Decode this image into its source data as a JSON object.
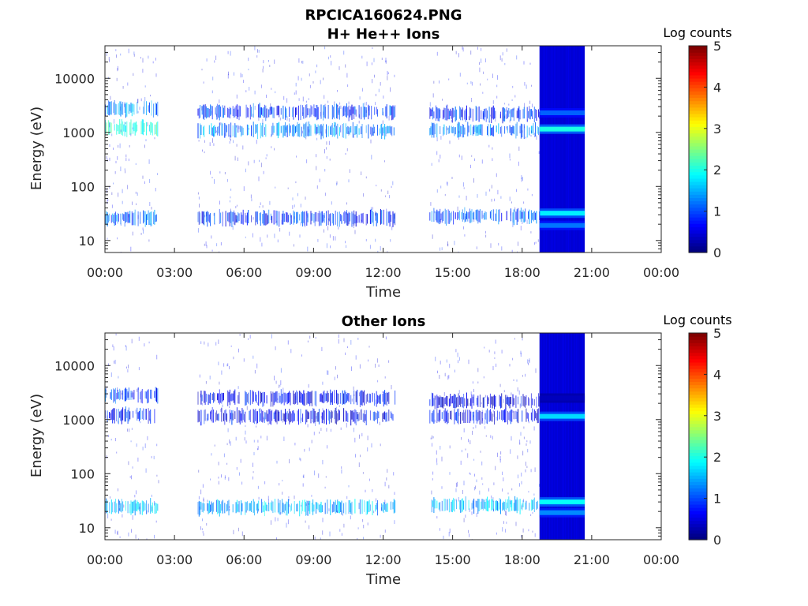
{
  "chart_data": [
    {
      "type": "heatmap",
      "title": "RPCICA160624.PNG",
      "subtitle": "H+ He++ Ions",
      "xlabel": "Time",
      "ylabel": "Energy (eV)",
      "x_ticks": [
        "00:00",
        "03:00",
        "06:00",
        "09:00",
        "12:00",
        "15:00",
        "18:00",
        "21:00",
        "00:00"
      ],
      "x_range_hours": [
        0,
        24
      ],
      "y_scale": "log",
      "y_ticks": [
        "10",
        "100",
        "1000",
        "10000"
      ],
      "y_range": [
        6,
        40000
      ],
      "colorbar": {
        "label": "Log counts",
        "range": [
          0,
          5
        ],
        "ticks": [
          "0",
          "1",
          "2",
          "3",
          "4",
          "5"
        ],
        "colormap": "jet"
      },
      "data_gaps_hours": [
        [
          2.3,
          4.0
        ],
        [
          12.5,
          14.0
        ],
        [
          20.7,
          24.0
        ]
      ],
      "bands": [
        {
          "t_start": 0.0,
          "t_end": 2.3,
          "energy_eV": 1200,
          "log_counts": 2.0
        },
        {
          "t_start": 0.0,
          "t_end": 2.3,
          "energy_eV": 2700,
          "log_counts": 1.3
        },
        {
          "t_start": 0.0,
          "t_end": 2.3,
          "energy_eV": 26,
          "log_counts": 1.1
        },
        {
          "t_start": 4.0,
          "t_end": 12.5,
          "energy_eV": 1100,
          "log_counts": 1.3
        },
        {
          "t_start": 4.0,
          "t_end": 12.5,
          "energy_eV": 2400,
          "log_counts": 0.9
        },
        {
          "t_start": 4.0,
          "t_end": 12.5,
          "energy_eV": 26,
          "log_counts": 0.8
        },
        {
          "t_start": 14.0,
          "t_end": 18.75,
          "energy_eV": 1100,
          "log_counts": 1.2
        },
        {
          "t_start": 14.0,
          "t_end": 18.75,
          "energy_eV": 2200,
          "log_counts": 0.8
        },
        {
          "t_start": 14.0,
          "t_end": 18.75,
          "energy_eV": 28,
          "log_counts": 1.0
        }
      ],
      "saturated_interval": {
        "t_start": 18.75,
        "t_end": 20.7,
        "background_log_counts": 0.4,
        "bands": [
          {
            "energy_eV": 1150,
            "log_counts": 2.0
          },
          {
            "energy_eV": 2300,
            "log_counts": 1.1
          },
          {
            "energy_eV": 32,
            "log_counts": 1.8
          },
          {
            "energy_eV": 19,
            "log_counts": 1.2
          }
        ]
      }
    },
    {
      "type": "heatmap",
      "title": "Other Ions",
      "xlabel": "Time",
      "ylabel": "Energy (eV)",
      "x_ticks": [
        "00:00",
        "03:00",
        "06:00",
        "09:00",
        "12:00",
        "15:00",
        "18:00",
        "21:00",
        "00:00"
      ],
      "x_range_hours": [
        0,
        24
      ],
      "y_scale": "log",
      "y_ticks": [
        "10",
        "100",
        "1000",
        "10000"
      ],
      "y_range": [
        6,
        40000
      ],
      "colorbar": {
        "label": "Log counts",
        "range": [
          0,
          5
        ],
        "ticks": [
          "0",
          "1",
          "2",
          "3",
          "4",
          "5"
        ],
        "colormap": "jet"
      },
      "data_gaps_hours": [
        [
          2.3,
          4.0
        ],
        [
          12.5,
          14.0
        ],
        [
          20.7,
          24.0
        ]
      ],
      "bands": [
        {
          "t_start": 0.0,
          "t_end": 2.3,
          "energy_eV": 2800,
          "log_counts": 0.9
        },
        {
          "t_start": 0.0,
          "t_end": 2.3,
          "energy_eV": 1200,
          "log_counts": 0.8
        },
        {
          "t_start": 0.0,
          "t_end": 2.3,
          "energy_eV": 24,
          "log_counts": 1.6
        },
        {
          "t_start": 4.0,
          "t_end": 12.5,
          "energy_eV": 2500,
          "log_counts": 0.6
        },
        {
          "t_start": 4.0,
          "t_end": 12.5,
          "energy_eV": 1150,
          "log_counts": 0.6
        },
        {
          "t_start": 4.0,
          "t_end": 12.5,
          "energy_eV": 24,
          "log_counts": 1.5
        },
        {
          "t_start": 14.0,
          "t_end": 18.75,
          "energy_eV": 2200,
          "log_counts": 0.5
        },
        {
          "t_start": 14.0,
          "t_end": 18.75,
          "energy_eV": 1150,
          "log_counts": 0.6
        },
        {
          "t_start": 14.0,
          "t_end": 18.75,
          "energy_eV": 26,
          "log_counts": 1.5
        }
      ],
      "saturated_interval": {
        "t_start": 18.75,
        "t_end": 20.7,
        "background_log_counts": 0.4,
        "bands": [
          {
            "energy_eV": 1150,
            "log_counts": 1.7
          },
          {
            "energy_eV": 2500,
            "log_counts": 0.3
          },
          {
            "energy_eV": 30,
            "log_counts": 1.9
          },
          {
            "energy_eV": 19,
            "log_counts": 1.3
          }
        ]
      }
    }
  ]
}
